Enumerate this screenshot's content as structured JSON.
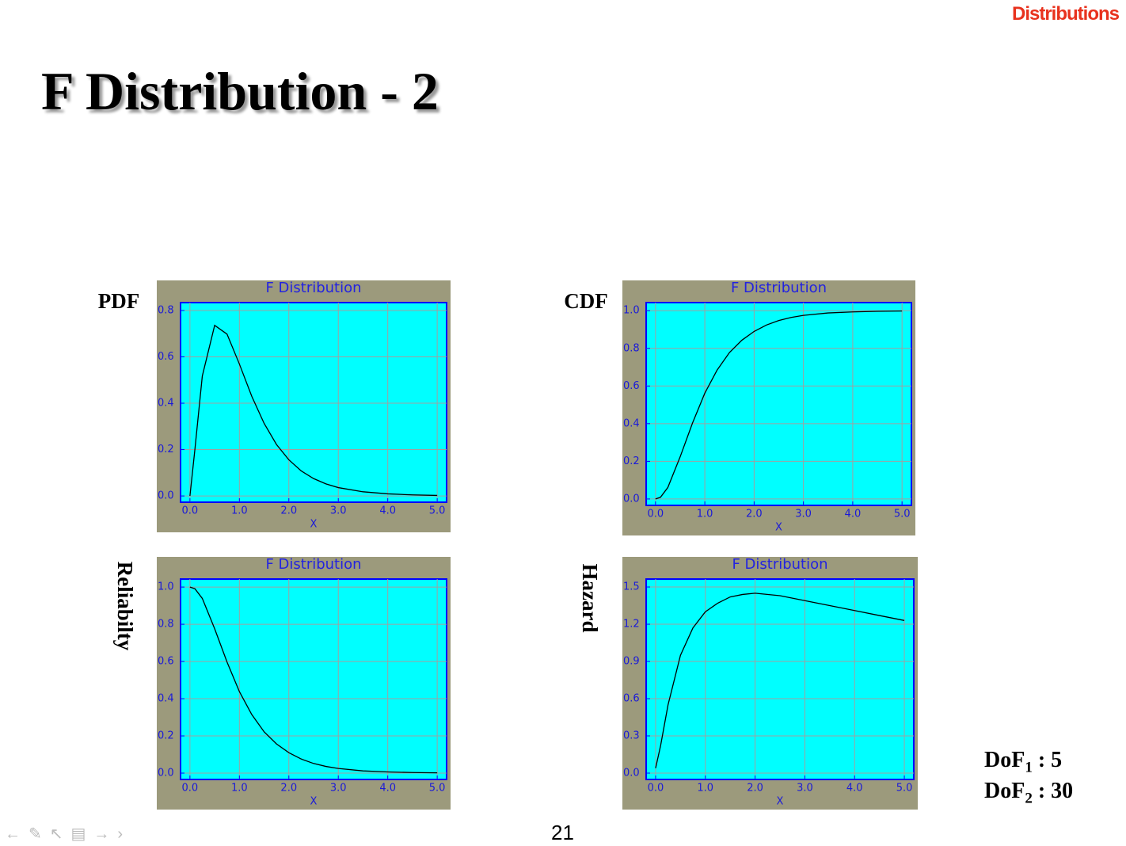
{
  "slide": {
    "header": "Distributions",
    "title": "F Distribution - 2",
    "page": "21",
    "dof": [
      {
        "label": "DoF",
        "subscript": "1",
        "text": ": 5"
      },
      {
        "label": "DoF",
        "subscript": "2",
        "text": ": 30"
      }
    ]
  },
  "chart_data": [
    {
      "type": "line",
      "title": "F Distribution",
      "xlabel": "X",
      "side_label": "PDF",
      "color": "#000000",
      "grid": true,
      "x": [
        0,
        0.1,
        0.25,
        0.5,
        0.75,
        1,
        1.25,
        1.5,
        1.75,
        2,
        2.25,
        2.5,
        2.75,
        3,
        3.5,
        4,
        4.5,
        5
      ],
      "values": [
        0,
        0.2,
        0.517,
        0.736,
        0.698,
        0.569,
        0.43,
        0.313,
        0.222,
        0.156,
        0.108,
        0.075,
        0.052,
        0.036,
        0.018,
        0.009,
        0.0045,
        0.0023
      ],
      "xlim": [
        -0.19,
        5.19
      ],
      "ylim": [
        -0.027,
        0.834
      ],
      "xticks": [
        {
          "value": 0,
          "label": "0.0"
        },
        {
          "value": 1,
          "label": "1.0"
        },
        {
          "value": 2,
          "label": "2.0"
        },
        {
          "value": 3,
          "label": "3.0"
        },
        {
          "value": 4,
          "label": "4.0"
        },
        {
          "value": 5,
          "label": "5.0"
        }
      ],
      "yticks": [
        {
          "value": 0,
          "label": "0.0"
        },
        {
          "value": 0.2,
          "label": "0.2"
        },
        {
          "value": 0.4,
          "label": "0.4"
        },
        {
          "value": 0.6,
          "label": "0.6"
        },
        {
          "value": 0.8,
          "label": "0.8"
        }
      ]
    },
    {
      "type": "line",
      "title": "F Distribution",
      "xlabel": "X",
      "side_label": "CDF",
      "color": "#000000",
      "grid": true,
      "x": [
        0,
        0.1,
        0.25,
        0.5,
        0.75,
        1,
        1.25,
        1.5,
        1.75,
        2,
        2.25,
        2.5,
        2.75,
        3,
        3.5,
        4,
        4.5,
        5
      ],
      "values": [
        0,
        0.009,
        0.061,
        0.224,
        0.403,
        0.562,
        0.685,
        0.778,
        0.843,
        0.89,
        0.924,
        0.948,
        0.964,
        0.975,
        0.988,
        0.9936,
        0.9968,
        0.9984
      ],
      "xlim": [
        -0.19,
        5.19
      ],
      "ylim": [
        -0.034,
        1.043
      ],
      "xticks": [
        {
          "value": 0,
          "label": "0.0"
        },
        {
          "value": 1,
          "label": "1.0"
        },
        {
          "value": 2,
          "label": "2.0"
        },
        {
          "value": 3,
          "label": "3.0"
        },
        {
          "value": 4,
          "label": "4.0"
        },
        {
          "value": 5,
          "label": "5.0"
        }
      ],
      "yticks": [
        {
          "value": 0,
          "label": "0.0"
        },
        {
          "value": 0.2,
          "label": "0.2"
        },
        {
          "value": 0.4,
          "label": "0.4"
        },
        {
          "value": 0.6,
          "label": "0.6"
        },
        {
          "value": 0.8,
          "label": "0.8"
        },
        {
          "value": 1,
          "label": "1.0"
        }
      ]
    },
    {
      "type": "line",
      "title": "F Distribution",
      "xlabel": "X",
      "side_label": "Reliabilty",
      "color": "#000000",
      "grid": true,
      "x": [
        0,
        0.1,
        0.25,
        0.5,
        0.75,
        1,
        1.25,
        1.5,
        1.75,
        2,
        2.25,
        2.5,
        2.75,
        3,
        3.5,
        4,
        4.5,
        5
      ],
      "values": [
        1,
        0.991,
        0.939,
        0.776,
        0.597,
        0.438,
        0.315,
        0.222,
        0.157,
        0.11,
        0.076,
        0.052,
        0.036,
        0.025,
        0.012,
        0.0064,
        0.0032,
        0.0016
      ],
      "xlim": [
        -0.19,
        5.19
      ],
      "ylim": [
        -0.034,
        1.043
      ],
      "xticks": [
        {
          "value": 0,
          "label": "0.0"
        },
        {
          "value": 1,
          "label": "1.0"
        },
        {
          "value": 2,
          "label": "2.0"
        },
        {
          "value": 3,
          "label": "3.0"
        },
        {
          "value": 4,
          "label": "4.0"
        },
        {
          "value": 5,
          "label": "5.0"
        }
      ],
      "yticks": [
        {
          "value": 0,
          "label": "0.0"
        },
        {
          "value": 0.2,
          "label": "0.2"
        },
        {
          "value": 0.4,
          "label": "0.4"
        },
        {
          "value": 0.6,
          "label": "0.6"
        },
        {
          "value": 0.8,
          "label": "0.8"
        },
        {
          "value": 1,
          "label": "1.0"
        }
      ]
    },
    {
      "type": "line",
      "title": "F Distribution",
      "xlabel": "X",
      "side_label": "Hazard",
      "color": "#000000",
      "grid": true,
      "x": [
        0,
        0.1,
        0.25,
        0.5,
        0.75,
        1,
        1.25,
        1.5,
        1.75,
        2,
        2.5,
        3,
        3.5,
        4,
        4.5,
        5
      ],
      "values": [
        0.04,
        0.22,
        0.55,
        0.95,
        1.17,
        1.3,
        1.37,
        1.42,
        1.44,
        1.45,
        1.43,
        1.39,
        1.35,
        1.31,
        1.27,
        1.23
      ],
      "xlim": [
        -0.19,
        5.19
      ],
      "ylim": [
        -0.051,
        1.564
      ],
      "xticks": [
        {
          "value": 0,
          "label": "0.0"
        },
        {
          "value": 1,
          "label": "1.0"
        },
        {
          "value": 2,
          "label": "2.0"
        },
        {
          "value": 3,
          "label": "3.0"
        },
        {
          "value": 4,
          "label": "4.0"
        },
        {
          "value": 5,
          "label": "5.0"
        }
      ],
      "yticks": [
        {
          "value": 0,
          "label": "0.0"
        },
        {
          "value": 0.3,
          "label": "0.3"
        },
        {
          "value": 0.6,
          "label": "0.6"
        },
        {
          "value": 0.9,
          "label": "0.9"
        },
        {
          "value": 1.2,
          "label": "1.2"
        },
        {
          "value": 1.5,
          "label": "1.5"
        }
      ]
    }
  ]
}
